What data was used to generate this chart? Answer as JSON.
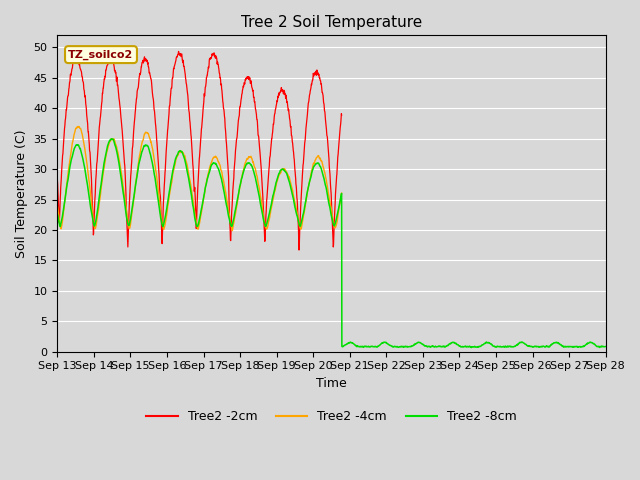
{
  "title": "Tree 2 Soil Temperature",
  "xlabel": "Time",
  "ylabel": "Soil Temperature (C)",
  "ylim": [
    0,
    52
  ],
  "yticks": [
    0,
    5,
    10,
    15,
    20,
    25,
    30,
    35,
    40,
    45,
    50
  ],
  "fig_bg_color": "#d8d8d8",
  "plot_bg_color": "#d8d8d8",
  "grid_color": "#ffffff",
  "legend_label": "TZ_soilco2",
  "series_red_label": "Tree2 -2cm",
  "series_red_color": "#ff0000",
  "series_orange_label": "Tree2 -4cm",
  "series_orange_color": "#ffa500",
  "series_green_label": "Tree2 -8cm",
  "series_green_color": "#00dd00",
  "x_tick_labels": [
    "Sep 13",
    "Sep 14",
    "Sep 15",
    "Sep 16",
    "Sep 17",
    "Sep 18",
    "Sep 19",
    "Sep 20",
    "Sep 21",
    "Sep 22",
    "Sep 23",
    "Sep 24",
    "Sep 25",
    "Sep 26",
    "Sep 27",
    "Sep 28"
  ],
  "n_days": 16,
  "active_days": 8.3,
  "points_per_day": 144
}
